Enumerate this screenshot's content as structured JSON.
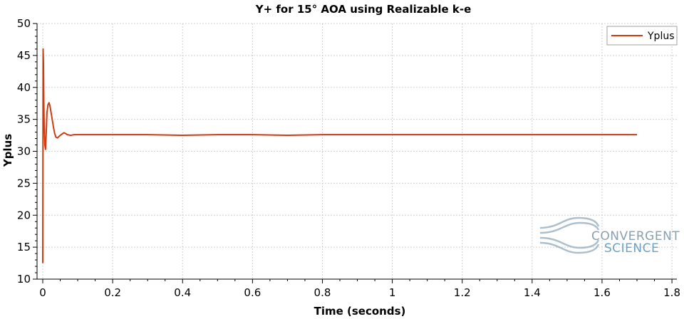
{
  "chart_data": {
    "type": "line",
    "title": "Y+ for 15° AOA using Realizable k-e",
    "xlabel": "Time (seconds)",
    "ylabel": "Yplus",
    "xlim": [
      0,
      1.8
    ],
    "ylim": [
      10,
      50
    ],
    "xticks": [
      0,
      0.2,
      0.4,
      0.6,
      0.8,
      1,
      1.2,
      1.4,
      1.6,
      1.8
    ],
    "xtick_labels": [
      "0",
      "0.2",
      "0.4",
      "0.6",
      "0.8",
      "1",
      "1.2",
      "1.4",
      "1.6",
      "1.8"
    ],
    "yticks": [
      10,
      15,
      20,
      25,
      30,
      35,
      40,
      45,
      50
    ],
    "ytick_labels": [
      "10",
      "15",
      "20",
      "25",
      "30",
      "35",
      "40",
      "45",
      "50"
    ],
    "grid": true,
    "legend_position": "top-right",
    "series": [
      {
        "name": "Yplus",
        "color": "#cc3d14",
        "x": [
          0,
          0.001,
          0.002,
          0.003,
          0.004,
          0.006,
          0.008,
          0.01,
          0.012,
          0.015,
          0.018,
          0.021,
          0.024,
          0.027,
          0.03,
          0.034,
          0.038,
          0.042,
          0.046,
          0.05,
          0.055,
          0.06,
          0.065,
          0.07,
          0.08,
          0.09,
          0.1,
          0.15,
          0.2,
          0.3,
          0.4,
          0.5,
          0.6,
          0.7,
          0.8,
          0.9,
          1.0,
          1.1,
          1.2,
          1.3,
          1.4,
          1.5,
          1.6,
          1.7
        ],
        "y": [
          12.5,
          46,
          44,
          38,
          34,
          31,
          30.3,
          33,
          36,
          37.3,
          37.6,
          37,
          36,
          35,
          34,
          32.8,
          32.2,
          32.1,
          32.3,
          32.5,
          32.7,
          32.9,
          32.8,
          32.6,
          32.5,
          32.6,
          32.6,
          32.6,
          32.6,
          32.6,
          32.5,
          32.6,
          32.6,
          32.5,
          32.6,
          32.6,
          32.6,
          32.6,
          32.6,
          32.6,
          32.6,
          32.6,
          32.6,
          32.6
        ]
      }
    ]
  },
  "logo": {
    "line1": "CONVERGENT",
    "line2": "SCIENCE"
  }
}
